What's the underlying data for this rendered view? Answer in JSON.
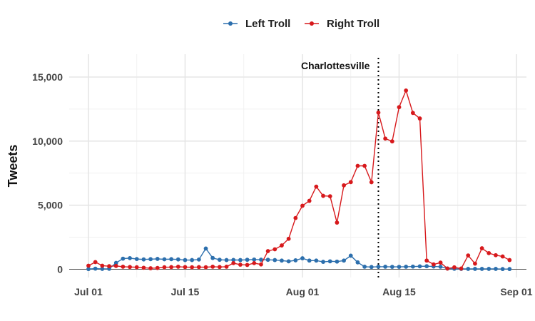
{
  "chart_data": {
    "type": "line",
    "xlabel": "",
    "ylabel": "Tweets",
    "ylim": [
      -500,
      16800
    ],
    "xlim": [
      "2017-06-30",
      "2017-09-01"
    ],
    "grid": true,
    "legend_position": "top",
    "y_ticks": [
      0,
      5000,
      10000,
      15000
    ],
    "y_tick_labels": [
      "0",
      "5,000",
      "10,000",
      "15,000"
    ],
    "x_ticks": [
      "2017-07-01",
      "2017-07-15",
      "2017-08-01",
      "2017-08-15",
      "2017-09-01"
    ],
    "x_tick_labels": [
      "Jul 01",
      "Jul 15",
      "Aug 01",
      "Aug 15",
      "Sep 01"
    ],
    "annotation": {
      "label": "Charlottesville",
      "date": "2017-08-12"
    },
    "series": [
      {
        "name": "Left Troll",
        "color": "#2c6fad",
        "points": [
          [
            "2017-07-01",
            20
          ],
          [
            "2017-07-02",
            50
          ],
          [
            "2017-07-03",
            30
          ],
          [
            "2017-07-04",
            40
          ],
          [
            "2017-07-05",
            500
          ],
          [
            "2017-07-06",
            830
          ],
          [
            "2017-07-07",
            870
          ],
          [
            "2017-07-08",
            800
          ],
          [
            "2017-07-09",
            770
          ],
          [
            "2017-07-10",
            790
          ],
          [
            "2017-07-11",
            810
          ],
          [
            "2017-07-12",
            780
          ],
          [
            "2017-07-13",
            790
          ],
          [
            "2017-07-14",
            770
          ],
          [
            "2017-07-15",
            720
          ],
          [
            "2017-07-16",
            720
          ],
          [
            "2017-07-17",
            760
          ],
          [
            "2017-07-18",
            1620
          ],
          [
            "2017-07-19",
            880
          ],
          [
            "2017-07-20",
            740
          ],
          [
            "2017-07-21",
            720
          ],
          [
            "2017-07-22",
            730
          ],
          [
            "2017-07-23",
            720
          ],
          [
            "2017-07-24",
            740
          ],
          [
            "2017-07-25",
            760
          ],
          [
            "2017-07-26",
            750
          ],
          [
            "2017-07-27",
            740
          ],
          [
            "2017-07-28",
            720
          ],
          [
            "2017-07-29",
            680
          ],
          [
            "2017-07-30",
            620
          ],
          [
            "2017-07-31",
            700
          ],
          [
            "2017-08-01",
            860
          ],
          [
            "2017-08-02",
            680
          ],
          [
            "2017-08-03",
            680
          ],
          [
            "2017-08-04",
            580
          ],
          [
            "2017-08-05",
            620
          ],
          [
            "2017-08-06",
            600
          ],
          [
            "2017-08-07",
            680
          ],
          [
            "2017-08-08",
            1060
          ],
          [
            "2017-08-09",
            540
          ],
          [
            "2017-08-10",
            200
          ],
          [
            "2017-08-11",
            180
          ],
          [
            "2017-08-12",
            200
          ],
          [
            "2017-08-13",
            200
          ],
          [
            "2017-08-14",
            190
          ],
          [
            "2017-08-15",
            190
          ],
          [
            "2017-08-16",
            200
          ],
          [
            "2017-08-17",
            210
          ],
          [
            "2017-08-18",
            230
          ],
          [
            "2017-08-19",
            240
          ],
          [
            "2017-08-20",
            220
          ],
          [
            "2017-08-21",
            200
          ],
          [
            "2017-08-22",
            60
          ],
          [
            "2017-08-23",
            40
          ],
          [
            "2017-08-24",
            30
          ],
          [
            "2017-08-25",
            30
          ],
          [
            "2017-08-26",
            30
          ],
          [
            "2017-08-27",
            30
          ],
          [
            "2017-08-28",
            30
          ],
          [
            "2017-08-29",
            30
          ],
          [
            "2017-08-30",
            20
          ],
          [
            "2017-08-31",
            20
          ]
        ]
      },
      {
        "name": "Right Troll",
        "color": "#d7191c",
        "points": [
          [
            "2017-07-01",
            280
          ],
          [
            "2017-07-02",
            560
          ],
          [
            "2017-07-03",
            280
          ],
          [
            "2017-07-04",
            240
          ],
          [
            "2017-07-05",
            260
          ],
          [
            "2017-07-06",
            200
          ],
          [
            "2017-07-07",
            180
          ],
          [
            "2017-07-08",
            160
          ],
          [
            "2017-07-09",
            120
          ],
          [
            "2017-07-10",
            80
          ],
          [
            "2017-07-11",
            100
          ],
          [
            "2017-07-12",
            160
          ],
          [
            "2017-07-13",
            170
          ],
          [
            "2017-07-14",
            200
          ],
          [
            "2017-07-15",
            170
          ],
          [
            "2017-07-16",
            160
          ],
          [
            "2017-07-17",
            170
          ],
          [
            "2017-07-18",
            160
          ],
          [
            "2017-07-19",
            200
          ],
          [
            "2017-07-20",
            180
          ],
          [
            "2017-07-21",
            200
          ],
          [
            "2017-07-22",
            480
          ],
          [
            "2017-07-23",
            360
          ],
          [
            "2017-07-24",
            340
          ],
          [
            "2017-07-25",
            480
          ],
          [
            "2017-07-26",
            380
          ],
          [
            "2017-07-27",
            1420
          ],
          [
            "2017-07-28",
            1560
          ],
          [
            "2017-07-29",
            1860
          ],
          [
            "2017-07-30",
            2380
          ],
          [
            "2017-07-31",
            4000
          ],
          [
            "2017-08-01",
            4960
          ],
          [
            "2017-08-02",
            5340
          ],
          [
            "2017-08-03",
            6450
          ],
          [
            "2017-08-04",
            5730
          ],
          [
            "2017-08-05",
            5700
          ],
          [
            "2017-08-06",
            3640
          ],
          [
            "2017-08-07",
            6550
          ],
          [
            "2017-08-08",
            6800
          ],
          [
            "2017-08-09",
            8070
          ],
          [
            "2017-08-10",
            8070
          ],
          [
            "2017-08-11",
            6790
          ],
          [
            "2017-08-12",
            12230
          ],
          [
            "2017-08-13",
            10200
          ],
          [
            "2017-08-14",
            9980
          ],
          [
            "2017-08-15",
            12650
          ],
          [
            "2017-08-16",
            13950
          ],
          [
            "2017-08-17",
            12200
          ],
          [
            "2017-08-18",
            11770
          ],
          [
            "2017-08-19",
            680
          ],
          [
            "2017-08-20",
            380
          ],
          [
            "2017-08-21",
            520
          ],
          [
            "2017-08-22",
            60
          ],
          [
            "2017-08-23",
            150
          ],
          [
            "2017-08-24",
            60
          ],
          [
            "2017-08-25",
            1080
          ],
          [
            "2017-08-26",
            440
          ],
          [
            "2017-08-27",
            1640
          ],
          [
            "2017-08-28",
            1260
          ],
          [
            "2017-08-29",
            1100
          ],
          [
            "2017-08-30",
            1000
          ],
          [
            "2017-08-31",
            720
          ]
        ]
      }
    ]
  }
}
